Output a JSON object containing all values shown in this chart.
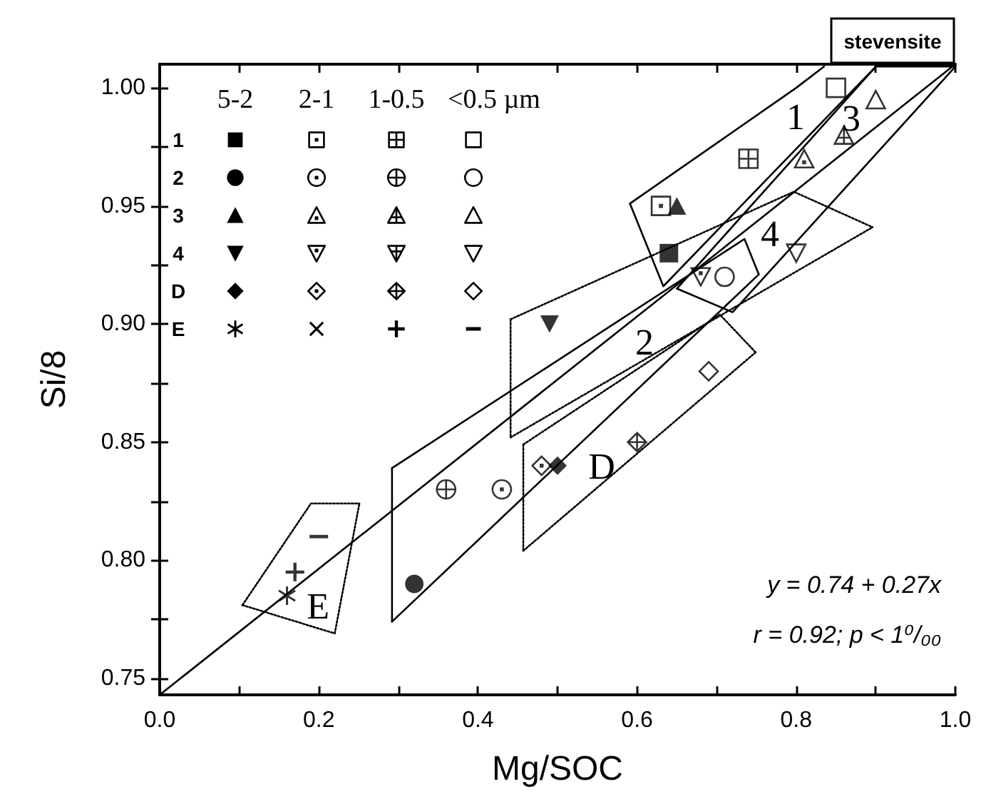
{
  "chart_data": {
    "type": "scatter",
    "xlabel": "Mg/SOC",
    "ylabel": "Si/8",
    "xlim": [
      0,
      1
    ],
    "ylim": [
      0.743,
      1.01
    ],
    "xticks": [
      {
        "value": 0,
        "label": "0.0"
      },
      {
        "value": 0.1,
        "label": null
      },
      {
        "value": 0.2,
        "label": "0.2"
      },
      {
        "value": 0.3,
        "label": null
      },
      {
        "value": 0.4,
        "label": "0.4"
      },
      {
        "value": 0.5,
        "label": null
      },
      {
        "value": 0.6,
        "label": "0.6"
      },
      {
        "value": 0.7,
        "label": null
      },
      {
        "value": 0.8,
        "label": "0.8"
      },
      {
        "value": 0.9,
        "label": null
      },
      {
        "value": 1,
        "label": "1.0"
      }
    ],
    "yticks": [
      {
        "value": 0.75,
        "label": "0.75"
      },
      {
        "value": 0.775,
        "label": null
      },
      {
        "value": 0.8,
        "label": "0.80"
      },
      {
        "value": 0.825,
        "label": null
      },
      {
        "value": 0.85,
        "label": "0.85"
      },
      {
        "value": 0.875,
        "label": null
      },
      {
        "value": 0.9,
        "label": "0.90"
      },
      {
        "value": 0.925,
        "label": null
      },
      {
        "value": 0.95,
        "label": "0.95"
      },
      {
        "value": 0.975,
        "label": null
      },
      {
        "value": 1,
        "label": "1.00"
      }
    ],
    "annotations": [
      "5-2",
      "2-1",
      "1-0.5",
      "<0.5 µm",
      "1",
      "2",
      "3",
      "4",
      "D",
      "E",
      "stevensite",
      "y = 0.74 + 0.27x",
      "r = 0.92; p < 1⁰/₀₀",
      "1",
      "3",
      "4",
      "2",
      "D",
      "E"
    ],
    "series": [
      {
        "color": "#000000",
        "x": [
          0.64
        ],
        "values": [
          0.93
        ]
      },
      {
        "color": "#000000",
        "x": [
          0.63
        ],
        "values": [
          0.95
        ]
      },
      {
        "color": "#000000",
        "x": [
          0.74
        ],
        "values": [
          0.97
        ]
      },
      {
        "color": "#000000",
        "x": [
          0.85
        ],
        "values": [
          1.0
        ]
      },
      {
        "color": "#000000",
        "x": [
          0.32
        ],
        "values": [
          0.79
        ]
      },
      {
        "color": "#000000",
        "x": [
          0.43
        ],
        "values": [
          0.83
        ]
      },
      {
        "color": "#000000",
        "x": [
          0.36
        ],
        "values": [
          0.83
        ]
      },
      {
        "color": "#000000",
        "x": [
          0.71
        ],
        "values": [
          0.92
        ]
      },
      {
        "color": "#000000",
        "x": [
          0.65
        ],
        "values": [
          0.95
        ]
      },
      {
        "color": "#000000",
        "x": [
          0.81
        ],
        "values": [
          0.97
        ]
      },
      {
        "color": "#000000",
        "x": [
          0.86
        ],
        "values": [
          0.98
        ]
      },
      {
        "color": "#000000",
        "x": [
          0.9
        ],
        "values": [
          0.995
        ]
      },
      {
        "color": "#000000",
        "x": [
          0.49
        ],
        "values": [
          0.9
        ]
      },
      {
        "color": "#000000",
        "x": [
          0.68
        ],
        "values": [
          0.92
        ]
      },
      {
        "color": "#000000"
      },
      {
        "color": "#000000",
        "x": [
          0.8
        ],
        "values": [
          0.93
        ]
      },
      {
        "color": "#000000",
        "x": [
          0.5
        ],
        "values": [
          0.84
        ]
      },
      {
        "color": "#000000",
        "x": [
          0.48
        ],
        "values": [
          0.84
        ]
      },
      {
        "color": "#000000",
        "x": [
          0.6
        ],
        "values": [
          0.85
        ]
      },
      {
        "color": "#000000",
        "x": [
          0.69
        ],
        "values": [
          0.88
        ]
      },
      {
        "color": "#000000",
        "x": [
          0.16
        ],
        "values": [
          0.785
        ]
      },
      {
        "color": "#000000"
      },
      {
        "color": "#000000",
        "x": [
          0.17
        ],
        "values": [
          0.795
        ]
      },
      {
        "color": "#000000",
        "x": [
          0.2
        ],
        "values": [
          0.81
        ]
      },
      {
        "type": "line",
        "line_style": "solid",
        "color": "#000000",
        "x": [
          0,
          1
        ],
        "values": [
          0.743,
          1.01
        ]
      },
      {
        "type": "line",
        "line_style": "solid",
        "color": "#000000",
        "x": [
          0.591,
          0.633,
          0.9
        ],
        "values": [
          0.951,
          0.916,
          1.009
        ]
      },
      {
        "type": "line",
        "line_style": "solid",
        "color": "#000000",
        "x": [
          0.591,
          0.8,
          0.835
        ],
        "values": [
          0.951,
          1.0,
          1.009
        ]
      },
      {
        "type": "line",
        "line_style": "solid",
        "color": "#000000",
        "x": [
          0.65,
          0.9,
          1.0
        ],
        "values": [
          0.915,
          1.009,
          1.009
        ]
      },
      {
        "type": "line",
        "line_style": "solid",
        "color": "#000000",
        "x": [
          0.65,
          0.72,
          1.0
        ],
        "values": [
          0.915,
          0.905,
          1.009
        ]
      },
      {
        "type": "line",
        "line_style": "solid",
        "color": "#000000",
        "x": [
          0.292,
          0.292
        ],
        "values": [
          0.839,
          0.774
        ]
      },
      {
        "type": "line",
        "line_style": "solid",
        "color": "#000000",
        "x": [
          0.292,
          0.753
        ],
        "values": [
          0.774,
          0.921
        ]
      },
      {
        "type": "line",
        "line_style": "solid",
        "color": "#000000",
        "x": [
          0.292,
          0.735,
          0.753
        ],
        "values": [
          0.839,
          0.936,
          0.921
        ]
      },
      {
        "type": "line",
        "line_style": "dotted",
        "color": "#000000",
        "x": [
          0.441,
          0.441
        ],
        "values": [
          0.902,
          0.852
        ]
      },
      {
        "type": "line",
        "line_style": "dotted",
        "color": "#000000",
        "x": [
          0.441,
          0.896
        ],
        "values": [
          0.852,
          0.941
        ]
      },
      {
        "type": "line",
        "line_style": "dotted",
        "color": "#000000",
        "x": [
          0.441,
          0.797,
          0.896
        ],
        "values": [
          0.902,
          0.956,
          0.941
        ]
      },
      {
        "type": "line",
        "line_style": "dotted",
        "color": "#000000",
        "x": [
          0.457,
          0.457
        ],
        "values": [
          0.849,
          0.804
        ]
      },
      {
        "type": "line",
        "line_style": "dotted",
        "color": "#000000",
        "x": [
          0.457,
          0.749
        ],
        "values": [
          0.804,
          0.888
        ]
      },
      {
        "type": "line",
        "line_style": "dotted",
        "color": "#000000",
        "x": [
          0.457,
          0.704,
          0.749
        ],
        "values": [
          0.849,
          0.904,
          0.888
        ]
      },
      {
        "type": "line",
        "line_style": "dotted",
        "color": "#000000",
        "x": [
          0.104,
          0.19,
          0.251
        ],
        "values": [
          0.781,
          0.824,
          0.824
        ]
      },
      {
        "type": "line",
        "line_style": "dotted",
        "color": "#000000",
        "x": [
          0.104,
          0.22,
          0.251
        ],
        "values": [
          0.781,
          0.769,
          0.824
        ]
      }
    ]
  }
}
